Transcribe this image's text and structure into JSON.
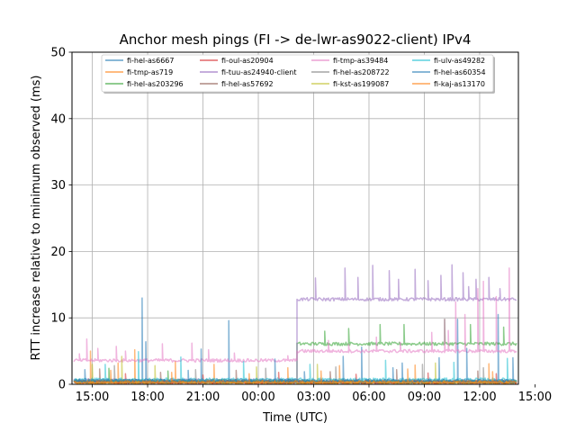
{
  "chart_data": {
    "type": "line",
    "title": "Anchor mesh pings (FI -> de-lwr-as9022-client) IPv4",
    "xlabel": "Time (UTC)",
    "ylabel": "RTT increase relative to minimum observed (ms)",
    "ylim": [
      0,
      50
    ],
    "xlim_hours": [
      13.9,
      38.1
    ],
    "data_range_hours": [
      14.0,
      38.0
    ],
    "x_ticks": [
      {
        "h": 15,
        "label": "15:00"
      },
      {
        "h": 18,
        "label": "18:00"
      },
      {
        "h": 21,
        "label": "21:00"
      },
      {
        "h": 24,
        "label": "00:00"
      },
      {
        "h": 27,
        "label": "03:00"
      },
      {
        "h": 30,
        "label": "06:00"
      },
      {
        "h": 33,
        "label": "09:00"
      },
      {
        "h": 36,
        "label": "12:00"
      },
      {
        "h": 39,
        "label": "15:00"
      }
    ],
    "y_ticks": [
      0,
      10,
      20,
      30,
      40,
      50
    ],
    "grid": true,
    "legend_placement": "top-center",
    "series": [
      {
        "name": "fi-hel-as6667",
        "color": "#1f77b4",
        "levels": [
          [
            14.0,
            0.4
          ]
        ],
        "spikes": [
          [
            17.7,
            13
          ],
          [
            22.4,
            9.6
          ],
          [
            29.6,
            5.6
          ],
          [
            34.8,
            9.8
          ],
          [
            37.0,
            10.5
          ],
          [
            20.2,
            2.1
          ],
          [
            26.5,
            1.9
          ],
          [
            31.3,
            2.5
          ],
          [
            33.8,
            4.0
          ]
        ]
      },
      {
        "name": "fi-tmp-as719",
        "color": "#ff7f0e",
        "levels": [
          [
            14.0,
            0.3
          ]
        ],
        "spikes": [
          [
            14.9,
            5.0
          ],
          [
            16.4,
            3.2
          ],
          [
            17.3,
            5.2
          ],
          [
            19.5,
            3.5
          ],
          [
            21.6,
            3.0
          ],
          [
            25.6,
            2.5
          ],
          [
            28.4,
            2.8
          ],
          [
            32.5,
            2.9
          ],
          [
            36.5,
            3.1
          ]
        ]
      },
      {
        "name": "fi-hel-as203296",
        "color": "#2ca02c",
        "levels": [
          [
            14.0,
            0.5
          ],
          [
            26.1,
            6.1
          ]
        ],
        "spikes": [
          [
            15.9,
            2.4
          ],
          [
            19.1,
            2.0
          ],
          [
            27.6,
            8.0
          ],
          [
            28.9,
            8.4
          ],
          [
            30.6,
            9.0
          ],
          [
            31.9,
            9.0
          ],
          [
            34.1,
            9.8
          ],
          [
            35.5,
            9.0
          ],
          [
            37.3,
            8.6
          ]
        ]
      },
      {
        "name": "fi-oul-as20904",
        "color": "#d62728",
        "levels": [
          [
            14.0,
            0.3
          ]
        ],
        "spikes": [
          [
            16.8,
            1.6
          ],
          [
            21.0,
            1.4
          ],
          [
            25.1,
            1.8
          ],
          [
            29.3,
            1.5
          ],
          [
            33.2,
            1.7
          ],
          [
            36.9,
            1.6
          ]
        ]
      },
      {
        "name": "fi-tuu-as24940-client",
        "color": "#9467bd",
        "levels": [
          [
            14.0,
            0.6
          ],
          [
            26.1,
            12.8
          ]
        ],
        "spikes": [
          [
            27.1,
            16.0
          ],
          [
            28.7,
            17.5
          ],
          [
            29.4,
            16.1
          ],
          [
            30.2,
            17.9
          ],
          [
            31.1,
            17.1
          ],
          [
            31.6,
            15.8
          ],
          [
            32.5,
            17.3
          ],
          [
            33.9,
            16.4
          ],
          [
            34.5,
            18.0
          ],
          [
            35.1,
            16.8
          ],
          [
            35.8,
            15.8
          ],
          [
            36.5,
            16.1
          ],
          [
            37.1,
            14.4
          ],
          [
            33.2,
            15.6
          ],
          [
            35.4,
            14.7
          ]
        ]
      },
      {
        "name": "fi-hel-as57692",
        "color": "#8c564b",
        "levels": [
          [
            14.0,
            0.4
          ]
        ],
        "spikes": [
          [
            15.4,
            2.3
          ],
          [
            18.7,
            1.8
          ],
          [
            22.8,
            2.1
          ],
          [
            27.9,
            1.9
          ],
          [
            31.5,
            2.2
          ],
          [
            35.9,
            2.0
          ]
        ]
      },
      {
        "name": "fi-tmp-as39484",
        "color": "#e377c2",
        "levels": [
          [
            14.0,
            3.6
          ],
          [
            26.1,
            5.0
          ]
        ],
        "spikes": [
          [
            14.3,
            4.6
          ],
          [
            14.7,
            6.8
          ],
          [
            15.3,
            5.4
          ],
          [
            16.3,
            5.7
          ],
          [
            16.8,
            5.0
          ],
          [
            18.8,
            6.1
          ],
          [
            20.4,
            6.2
          ],
          [
            21.3,
            5.2
          ],
          [
            22.7,
            4.7
          ],
          [
            25.6,
            4.3
          ],
          [
            27.8,
            6.6
          ],
          [
            28.9,
            6.0
          ],
          [
            30.4,
            7.1
          ],
          [
            31.7,
            6.3
          ],
          [
            33.4,
            7.8
          ],
          [
            34.1,
            9.8
          ],
          [
            34.7,
            12.4
          ],
          [
            35.2,
            10.5
          ],
          [
            35.9,
            14.4
          ],
          [
            36.2,
            15.5
          ],
          [
            36.9,
            13.2
          ],
          [
            37.6,
            17.5
          ],
          [
            34.3,
            8.1
          ]
        ]
      },
      {
        "name": "fi-hel-as208722",
        "color": "#7f7f7f",
        "levels": [
          [
            14.0,
            0.5
          ]
        ],
        "spikes": [
          [
            16.2,
            2.8
          ],
          [
            20.6,
            2.2
          ],
          [
            24.4,
            2.4
          ],
          [
            28.2,
            2.6
          ],
          [
            32.9,
            3.0
          ],
          [
            36.2,
            2.5
          ]
        ]
      },
      {
        "name": "fi-kst-as199087",
        "color": "#bcbd22",
        "levels": [
          [
            14.0,
            0.3
          ]
        ],
        "spikes": [
          [
            15.0,
            3.0
          ],
          [
            16.6,
            4.2
          ],
          [
            18.4,
            2.8
          ],
          [
            23.9,
            2.6
          ],
          [
            27.2,
            3.0
          ],
          [
            33.6,
            3.2
          ]
        ]
      },
      {
        "name": "fi-ulv-as49282",
        "color": "#17becf",
        "levels": [
          [
            14.0,
            0.7
          ]
        ],
        "spikes": [
          [
            15.7,
            3.0
          ],
          [
            17.5,
            4.9
          ],
          [
            19.8,
            4.1
          ],
          [
            23.2,
            3.4
          ],
          [
            26.8,
            3.0
          ],
          [
            30.9,
            3.6
          ],
          [
            34.6,
            3.3
          ],
          [
            37.5,
            3.9
          ]
        ]
      },
      {
        "name": "fi-hel-as60354",
        "color": "#1f77b4",
        "levels": [
          [
            14.0,
            0.5
          ]
        ],
        "spikes": [
          [
            14.6,
            2.2
          ],
          [
            17.9,
            6.4
          ],
          [
            20.9,
            5.3
          ],
          [
            24.9,
            3.8
          ],
          [
            28.6,
            4.2
          ],
          [
            31.8,
            3.2
          ],
          [
            35.3,
            5.4
          ],
          [
            37.8,
            4.0
          ]
        ]
      },
      {
        "name": "fi-kaj-as13170",
        "color": "#ff7f0e",
        "levels": [
          [
            14.0,
            0.3
          ]
        ],
        "spikes": [
          [
            16.0,
            2.1
          ],
          [
            19.3,
            1.8
          ],
          [
            23.5,
            1.6
          ],
          [
            27.4,
            2.0
          ],
          [
            32.1,
            2.3
          ],
          [
            36.7,
            1.9
          ]
        ]
      }
    ]
  }
}
